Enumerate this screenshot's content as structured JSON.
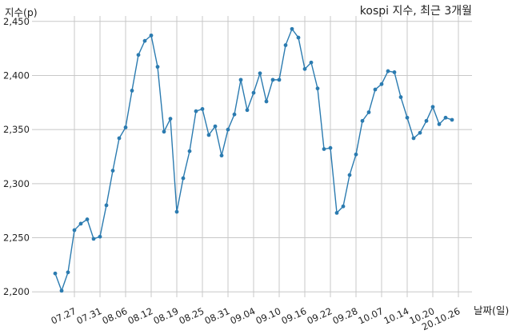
{
  "chart_data": {
    "type": "line",
    "title": "kospi 지수, 최근 3개월",
    "xlabel": "날짜(일)",
    "ylabel": "지수(p)",
    "ylim": [
      2195,
      2455
    ],
    "yticks": [
      2200,
      2250,
      2300,
      2350,
      2400,
      2450
    ],
    "ytick_labels": [
      "2,200",
      "2,250",
      "2,300",
      "2,350",
      "2,400",
      "2,450"
    ],
    "xtick_labels": [
      "07.27",
      "07.31",
      "08.06",
      "08.12",
      "08.19",
      "08.25",
      "08.31",
      "09.04",
      "09.10",
      "09.16",
      "09.22",
      "09.28",
      "10.07",
      "10.14",
      "10.20",
      "20.10.26"
    ],
    "xtick_indices": [
      3,
      7,
      11,
      15,
      19,
      23,
      27,
      31,
      35,
      39,
      43,
      47,
      51,
      55,
      59,
      63
    ],
    "grid": true,
    "color": "#2b7bb0",
    "series": [
      {
        "values": [
          2217,
          2201,
          2218,
          2257,
          2263,
          2267,
          2249,
          2251,
          2280,
          2312,
          2342,
          2352,
          2386,
          2419,
          2432,
          2437,
          2408,
          2348,
          2360,
          2274,
          2305,
          2330,
          2367,
          2369,
          2345,
          2353,
          2326,
          2350,
          2364,
          2396,
          2368,
          2384,
          2402,
          2376,
          2396,
          2396,
          2428,
          2443,
          2435,
          2406,
          2412,
          2388,
          2332,
          2333,
          2273,
          2279,
          2308,
          2327,
          2358,
          2366,
          2387,
          2392,
          2404,
          2403,
          2380,
          2361,
          2342,
          2347,
          2358,
          2371,
          2355,
          2361,
          2359
        ]
      }
    ]
  }
}
